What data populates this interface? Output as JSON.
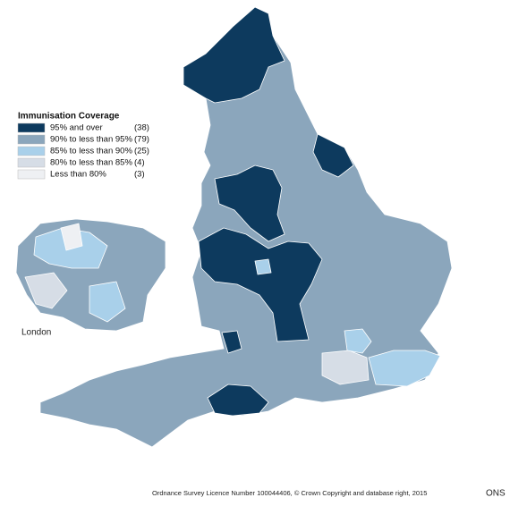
{
  "legend": {
    "title": "Immunisation Coverage",
    "items": [
      {
        "label": "95% and over",
        "count": "(38)",
        "color": "#0d3a5e"
      },
      {
        "label": "90% to less than 95%",
        "count": "(79)",
        "color": "#8ba6bc"
      },
      {
        "label": "85% to less than 90%",
        "count": "(25)",
        "color": "#a9d0ea"
      },
      {
        "label": "80% to less than 85%",
        "count": "(4)",
        "color": "#d6dde6"
      },
      {
        "label": "Less than 80%",
        "count": "(3)",
        "color": "#eef0f3"
      }
    ]
  },
  "inset_label": "London",
  "footer": "Ordnance Survey Licence Number 100044406, © Crown Copyright and database right, 2015",
  "source": "ONS"
}
